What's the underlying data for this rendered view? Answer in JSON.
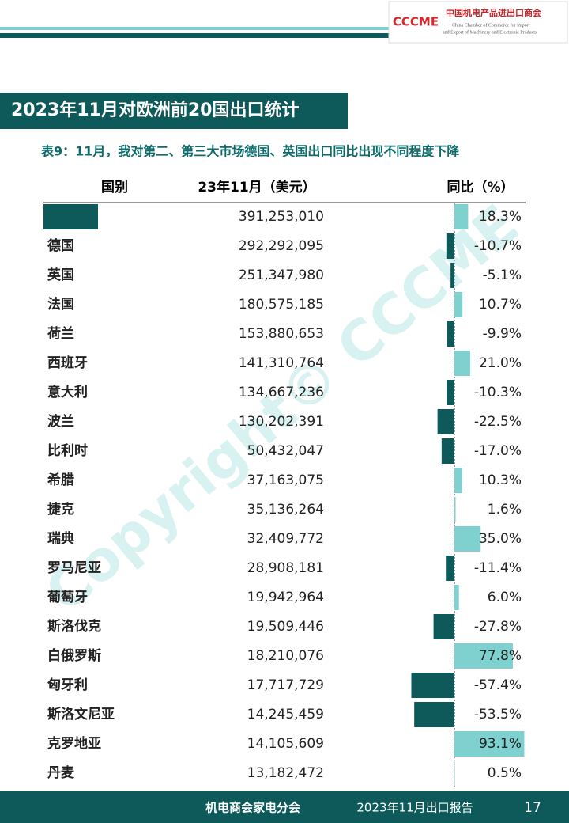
{
  "header": {
    "logo_mark": "CCCME",
    "org_cn": "中国机电产品进出口商会",
    "org_en_1": "China Chamber of Commerce for Import",
    "org_en_2": "and Export of Machinery and Electronic Products"
  },
  "title": "2023年11月对欧洲前20国出口统计",
  "subtitle": "表9：11月，我对第二、第三大市场德国、英国出口同比出现不同程度下降",
  "table": {
    "columns": [
      "国别",
      "23年11月（美元）",
      "同比（%）"
    ],
    "rows": [
      {
        "country": null,
        "value": "391,253,010",
        "yoy": 18.3,
        "yoy_label": "18.3%"
      },
      {
        "country": "德国",
        "value": "292,292,095",
        "yoy": -10.7,
        "yoy_label": "-10.7%"
      },
      {
        "country": "英国",
        "value": "251,347,980",
        "yoy": -5.1,
        "yoy_label": "-5.1%"
      },
      {
        "country": "法国",
        "value": "180,575,185",
        "yoy": 10.7,
        "yoy_label": "10.7%"
      },
      {
        "country": "荷兰",
        "value": "153,880,653",
        "yoy": -9.9,
        "yoy_label": "-9.9%"
      },
      {
        "country": "西班牙",
        "value": "141,310,764",
        "yoy": 21.0,
        "yoy_label": "21.0%"
      },
      {
        "country": "意大利",
        "value": "134,667,236",
        "yoy": -10.3,
        "yoy_label": "-10.3%"
      },
      {
        "country": "波兰",
        "value": "130,202,391",
        "yoy": -22.5,
        "yoy_label": "-22.5%"
      },
      {
        "country": "比利时",
        "value": "50,432,047",
        "yoy": -17.0,
        "yoy_label": "-17.0%"
      },
      {
        "country": "希腊",
        "value": "37,163,075",
        "yoy": 10.3,
        "yoy_label": "10.3%"
      },
      {
        "country": "捷克",
        "value": "35,136,264",
        "yoy": 1.6,
        "yoy_label": "1.6%"
      },
      {
        "country": "瑞典",
        "value": "32,409,772",
        "yoy": 35.0,
        "yoy_label": "35.0%"
      },
      {
        "country": "罗马尼亚",
        "value": "28,908,181",
        "yoy": -11.4,
        "yoy_label": "-11.4%"
      },
      {
        "country": "葡萄牙",
        "value": "19,942,964",
        "yoy": 6.0,
        "yoy_label": "6.0%"
      },
      {
        "country": "斯洛伐克",
        "value": "19,509,446",
        "yoy": -27.8,
        "yoy_label": "-27.8%"
      },
      {
        "country": "白俄罗斯",
        "value": "18,210,076",
        "yoy": 77.8,
        "yoy_label": "77.8%"
      },
      {
        "country": "匈牙利",
        "value": "17,717,729",
        "yoy": -57.4,
        "yoy_label": "-57.4%"
      },
      {
        "country": "斯洛文尼亚",
        "value": "14,245,459",
        "yoy": -53.5,
        "yoy_label": "-53.5%"
      },
      {
        "country": "克罗地亚",
        "value": "14,105,609",
        "yoy": 93.1,
        "yoy_label": "93.1%"
      },
      {
        "country": "丹麦",
        "value": "13,182,472",
        "yoy": 0.5,
        "yoy_label": "0.5%"
      }
    ]
  },
  "watermark": "Copyright© CCCME",
  "footer": {
    "left": "机电商会家电分会",
    "center": "2023年11月出口报告",
    "page": "17"
  }
}
